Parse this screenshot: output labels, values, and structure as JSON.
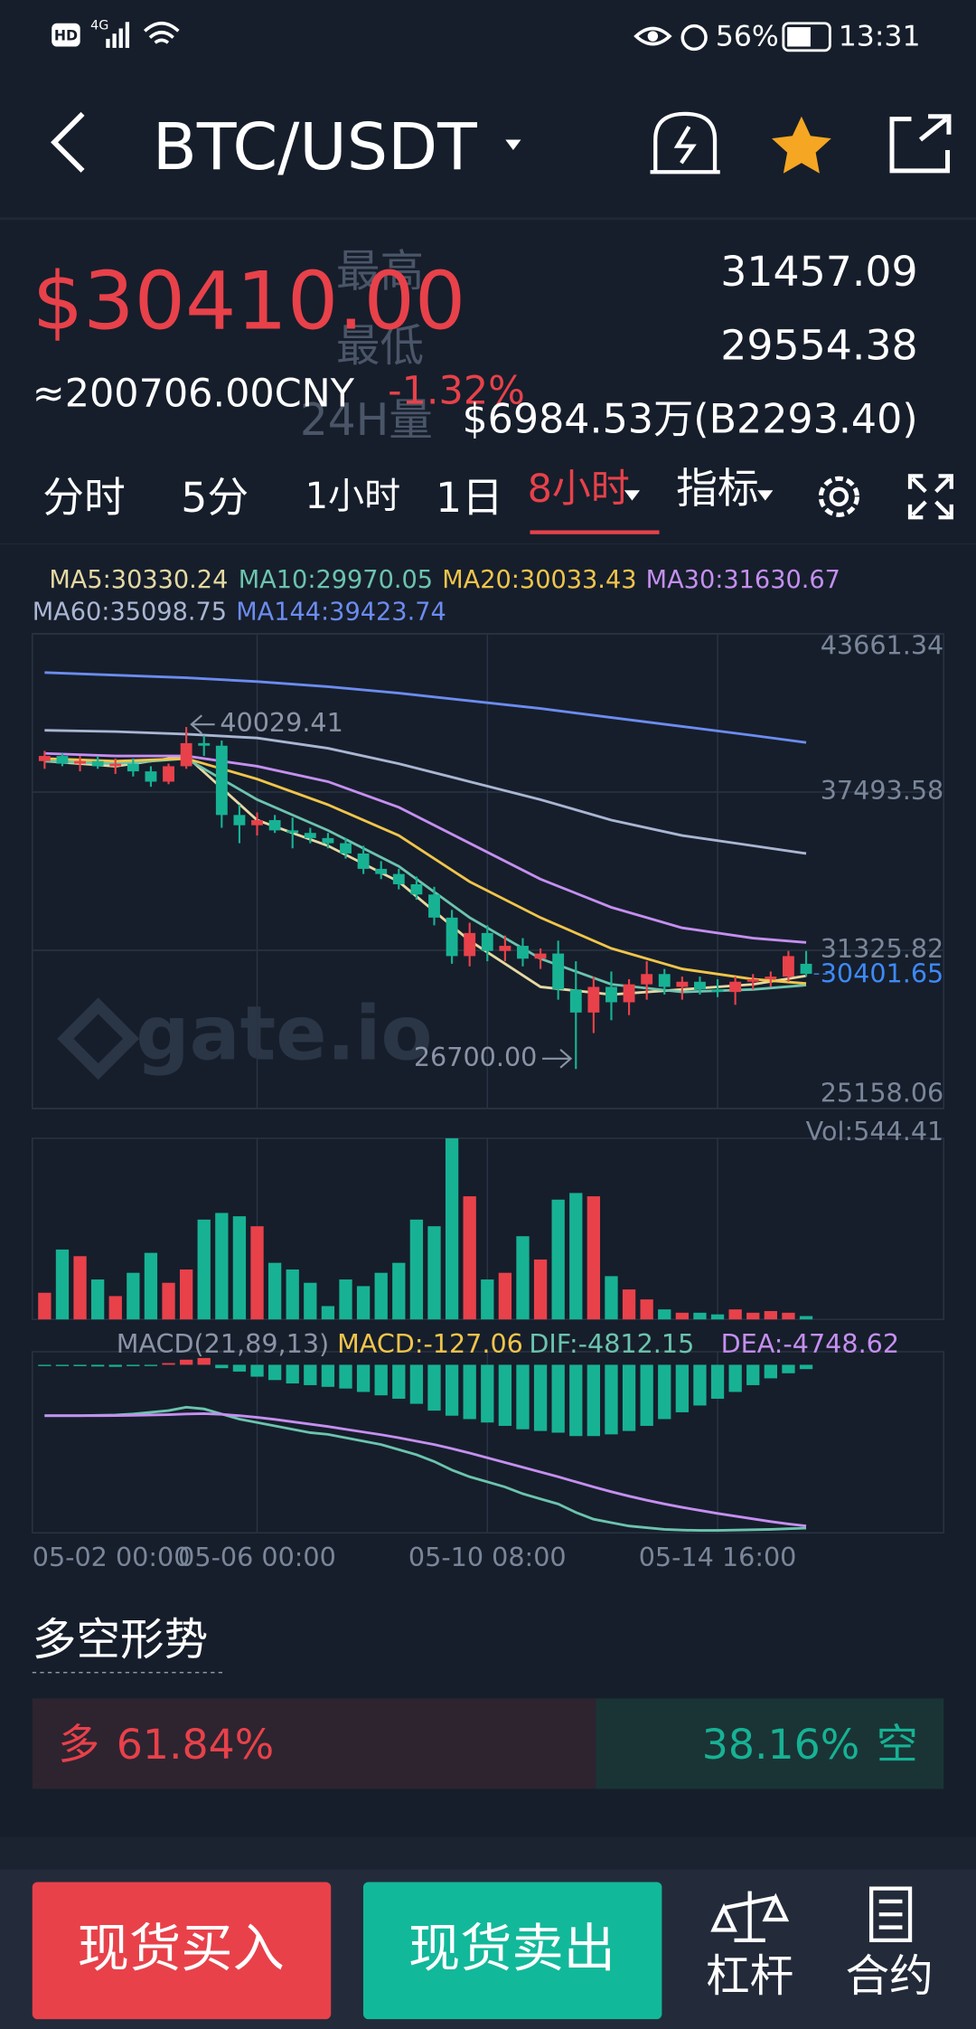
{
  "status_bar": {
    "hd": "HD",
    "network": "4G",
    "battery": "56%",
    "time": "13:31"
  },
  "header": {
    "pair": "BTC/USDT"
  },
  "ticker": {
    "price": "$30410.00",
    "cny": "≈200706.00CNY",
    "change": "-1.32%",
    "high_label": "最高",
    "high": "31457.09",
    "low_label": "最低",
    "low": "29554.38",
    "volume_label": "24H量",
    "volume": "$6984.53万(B2293.40)"
  },
  "tabs": [
    "分时",
    "5分",
    "1小时",
    "1日",
    "8小时",
    "指标"
  ],
  "chart_data": {
    "type": "candlestick",
    "watermark": "gate.io",
    "categories": [
      "05-02 00:00",
      null,
      null,
      null,
      null,
      null,
      null,
      null,
      null,
      null,
      null,
      null,
      "05-06 00:00",
      null,
      null,
      null,
      null,
      null,
      null,
      null,
      null,
      null,
      null,
      null,
      null,
      "05-10 08:00",
      null,
      null,
      null,
      null,
      null,
      null,
      null,
      null,
      null,
      null,
      null,
      null,
      "05-14 16:00",
      null,
      null,
      null,
      null,
      null
    ],
    "open": [
      38700,
      38900,
      38600,
      38700,
      38500,
      38600,
      38300,
      37900,
      38500,
      39400,
      39300,
      36600,
      36200,
      36400,
      36000,
      35900,
      35700,
      35500,
      35100,
      34500,
      34300,
      33900,
      33500,
      32600,
      31100,
      32000,
      31300,
      31500,
      31000,
      31200,
      29800,
      28900,
      29900,
      29300,
      30000,
      30400,
      29900,
      30100,
      29800,
      29700,
      30100,
      30200,
      30300,
      30800
    ],
    "high": [
      39100,
      39000,
      38900,
      38900,
      38800,
      38800,
      38500,
      38600,
      40029.41,
      39700,
      39500,
      37000,
      36700,
      36600,
      36500,
      36100,
      35900,
      35700,
      35400,
      34800,
      34500,
      34200,
      33800,
      32900,
      32400,
      32300,
      31900,
      31800,
      31400,
      31700,
      30900,
      30300,
      30500,
      30200,
      30900,
      30600,
      30300,
      30300,
      30200,
      30300,
      30400,
      30500,
      31300,
      31300
    ],
    "low": [
      38400,
      38500,
      38300,
      38400,
      38200,
      38100,
      37700,
      37800,
      38400,
      38900,
      36100,
      35500,
      35800,
      35900,
      35300,
      35500,
      35300,
      34900,
      34300,
      34100,
      33700,
      33300,
      32300,
      30800,
      30700,
      30900,
      30900,
      30700,
      30600,
      29400,
      26700,
      28100,
      28600,
      28800,
      29400,
      29600,
      29400,
      29600,
      29500,
      29200,
      29800,
      29900,
      30100,
      30300
    ],
    "close": [
      38900,
      38600,
      38700,
      38500,
      38600,
      38300,
      37900,
      38500,
      39400,
      39300,
      36600,
      36200,
      36400,
      36000,
      35900,
      35700,
      35500,
      35100,
      34500,
      34300,
      33900,
      33500,
      32600,
      31100,
      32000,
      31300,
      31500,
      31000,
      31200,
      29800,
      28900,
      29900,
      29300,
      30000,
      30400,
      29900,
      30100,
      29800,
      29700,
      30100,
      30200,
      30300,
      31100,
      30410
    ],
    "up_color": "#e8414a",
    "down_color": "#17b294",
    "ylim": [
      25158.06,
      43661.34
    ],
    "yticks": [
      25158.06,
      31325.82,
      37493.58,
      43661.34
    ],
    "last_price": 30401.65,
    "max_price": 40029.41,
    "min_price": {
      "value": 26700,
      "label": "26700.00"
    },
    "ma_series": [
      {
        "name": "MA5",
        "label": "MA5:30330.24",
        "color": "#e6d9a2",
        "x": [
          0,
          4,
          8,
          12,
          16,
          20,
          24,
          28,
          32,
          36,
          40,
          43
        ],
        "values": [
          38700,
          38500,
          38900,
          36400,
          35400,
          34000,
          31700,
          29900,
          29600,
          29800,
          30000,
          30330.24
        ]
      },
      {
        "name": "MA10",
        "label": "MA10:29970.05",
        "color": "#6cc4ae",
        "x": [
          0,
          4,
          8,
          12,
          16,
          20,
          24,
          28,
          32,
          36,
          40,
          43
        ],
        "values": [
          38700,
          38600,
          38800,
          37200,
          36000,
          34600,
          32600,
          31000,
          30000,
          29700,
          29800,
          29970.05
        ]
      },
      {
        "name": "MA20",
        "label": "MA20:30033.43",
        "color": "#f0c54a",
        "x": [
          0,
          4,
          8,
          12,
          16,
          20,
          24,
          28,
          32,
          36,
          40,
          43
        ],
        "values": [
          38800,
          38700,
          38800,
          38000,
          37000,
          35800,
          34000,
          32600,
          31400,
          30600,
          30200,
          30033.43
        ]
      },
      {
        "name": "MA30",
        "label": "MA30:31630.67",
        "color": "#c58ff0",
        "x": [
          0,
          4,
          8,
          12,
          16,
          20,
          24,
          28,
          32,
          36,
          40,
          43
        ],
        "values": [
          39000,
          38900,
          38900,
          38500,
          37900,
          36900,
          35500,
          34100,
          33000,
          32200,
          31800,
          31630.67
        ]
      },
      {
        "name": "MA60",
        "label": "MA60:35098.75",
        "color": "#a9b6d3",
        "x": [
          0,
          4,
          8,
          12,
          16,
          20,
          24,
          28,
          32,
          36,
          40,
          43
        ],
        "values": [
          39900,
          39850,
          39750,
          39600,
          39200,
          38600,
          37900,
          37200,
          36400,
          35800,
          35400,
          35098.75
        ]
      },
      {
        "name": "MA144",
        "label": "MA144:39423.74",
        "color": "#6c8cf0",
        "x": [
          0,
          4,
          8,
          12,
          16,
          20,
          24,
          28,
          32,
          36,
          40,
          43
        ],
        "values": [
          42150,
          42050,
          41950,
          41800,
          41600,
          41350,
          41050,
          40750,
          40400,
          40050,
          39700,
          39423.74
        ]
      }
    ],
    "volume": {
      "label": "Vol:544.41",
      "ylim": [
        0,
        544.41
      ],
      "values": [
        80,
        210,
        190,
        120,
        70,
        140,
        200,
        110,
        150,
        300,
        320,
        310,
        280,
        170,
        150,
        110,
        40,
        120,
        100,
        140,
        170,
        300,
        280,
        544.41,
        370,
        120,
        140,
        250,
        180,
        360,
        380,
        370,
        130,
        90,
        60,
        30,
        20,
        20,
        15,
        30,
        20,
        25,
        20,
        10
      ]
    },
    "macd": {
      "labels": [
        {
          "text": "MACD(21,89,13)",
          "color": "#8a94a6"
        },
        {
          "text": "MACD:-127.06",
          "color": "#f0c54a"
        },
        {
          "text": "DIF:-4812.15",
          "color": "#6cc4ae"
        },
        {
          "text": "DEA:-4748.62",
          "color": "#c58ff0"
        }
      ],
      "ylim": [
        -4950,
        385
      ],
      "hist": [
        -20,
        -30,
        -40,
        -50,
        -60,
        -40,
        -20,
        50,
        150,
        200,
        -100,
        -200,
        -350,
        -450,
        -550,
        -600,
        -650,
        -700,
        -800,
        -900,
        -1000,
        -1150,
        -1350,
        -1500,
        -1600,
        -1700,
        -1800,
        -1900,
        -1950,
        -2000,
        -2100,
        -2100,
        -2050,
        -1950,
        -1800,
        -1600,
        -1400,
        -1200,
        -1000,
        -800,
        -600,
        -400,
        -250,
        -127.06
      ],
      "dif": [
        -1500,
        -1500,
        -1500,
        -1490,
        -1480,
        -1450,
        -1400,
        -1350,
        -1250,
        -1300,
        -1450,
        -1600,
        -1700,
        -1800,
        -1900,
        -2000,
        -2050,
        -2150,
        -2250,
        -2350,
        -2500,
        -2650,
        -2850,
        -3100,
        -3300,
        -3450,
        -3600,
        -3800,
        -3950,
        -4100,
        -4350,
        -4550,
        -4650,
        -4750,
        -4800,
        -4850,
        -4870,
        -4880,
        -4880,
        -4870,
        -4860,
        -4850,
        -4830,
        -4812.15
      ],
      "dea": [
        -1500,
        -1500,
        -1500,
        -1500,
        -1495,
        -1490,
        -1480,
        -1470,
        -1450,
        -1440,
        -1460,
        -1500,
        -1550,
        -1610,
        -1680,
        -1750,
        -1820,
        -1900,
        -1980,
        -2060,
        -2150,
        -2250,
        -2350,
        -2470,
        -2600,
        -2740,
        -2880,
        -3020,
        -3160,
        -3300,
        -3450,
        -3600,
        -3740,
        -3870,
        -3990,
        -4100,
        -4200,
        -4290,
        -4380,
        -4460,
        -4540,
        -4620,
        -4690,
        -4748.62
      ],
      "dif_color": "#6cc4ae",
      "dea_color": "#c58ff0"
    }
  },
  "sentiment": {
    "title": "多空形势",
    "names": [
      "多",
      "空"
    ],
    "values": [
      61.84,
      38.16
    ],
    "value_labels": [
      "61.84%",
      "38.16%"
    ]
  },
  "footer": {
    "buy": "现货买入",
    "sell": "现货卖出",
    "margin": "杠杆",
    "contract": "合约"
  }
}
